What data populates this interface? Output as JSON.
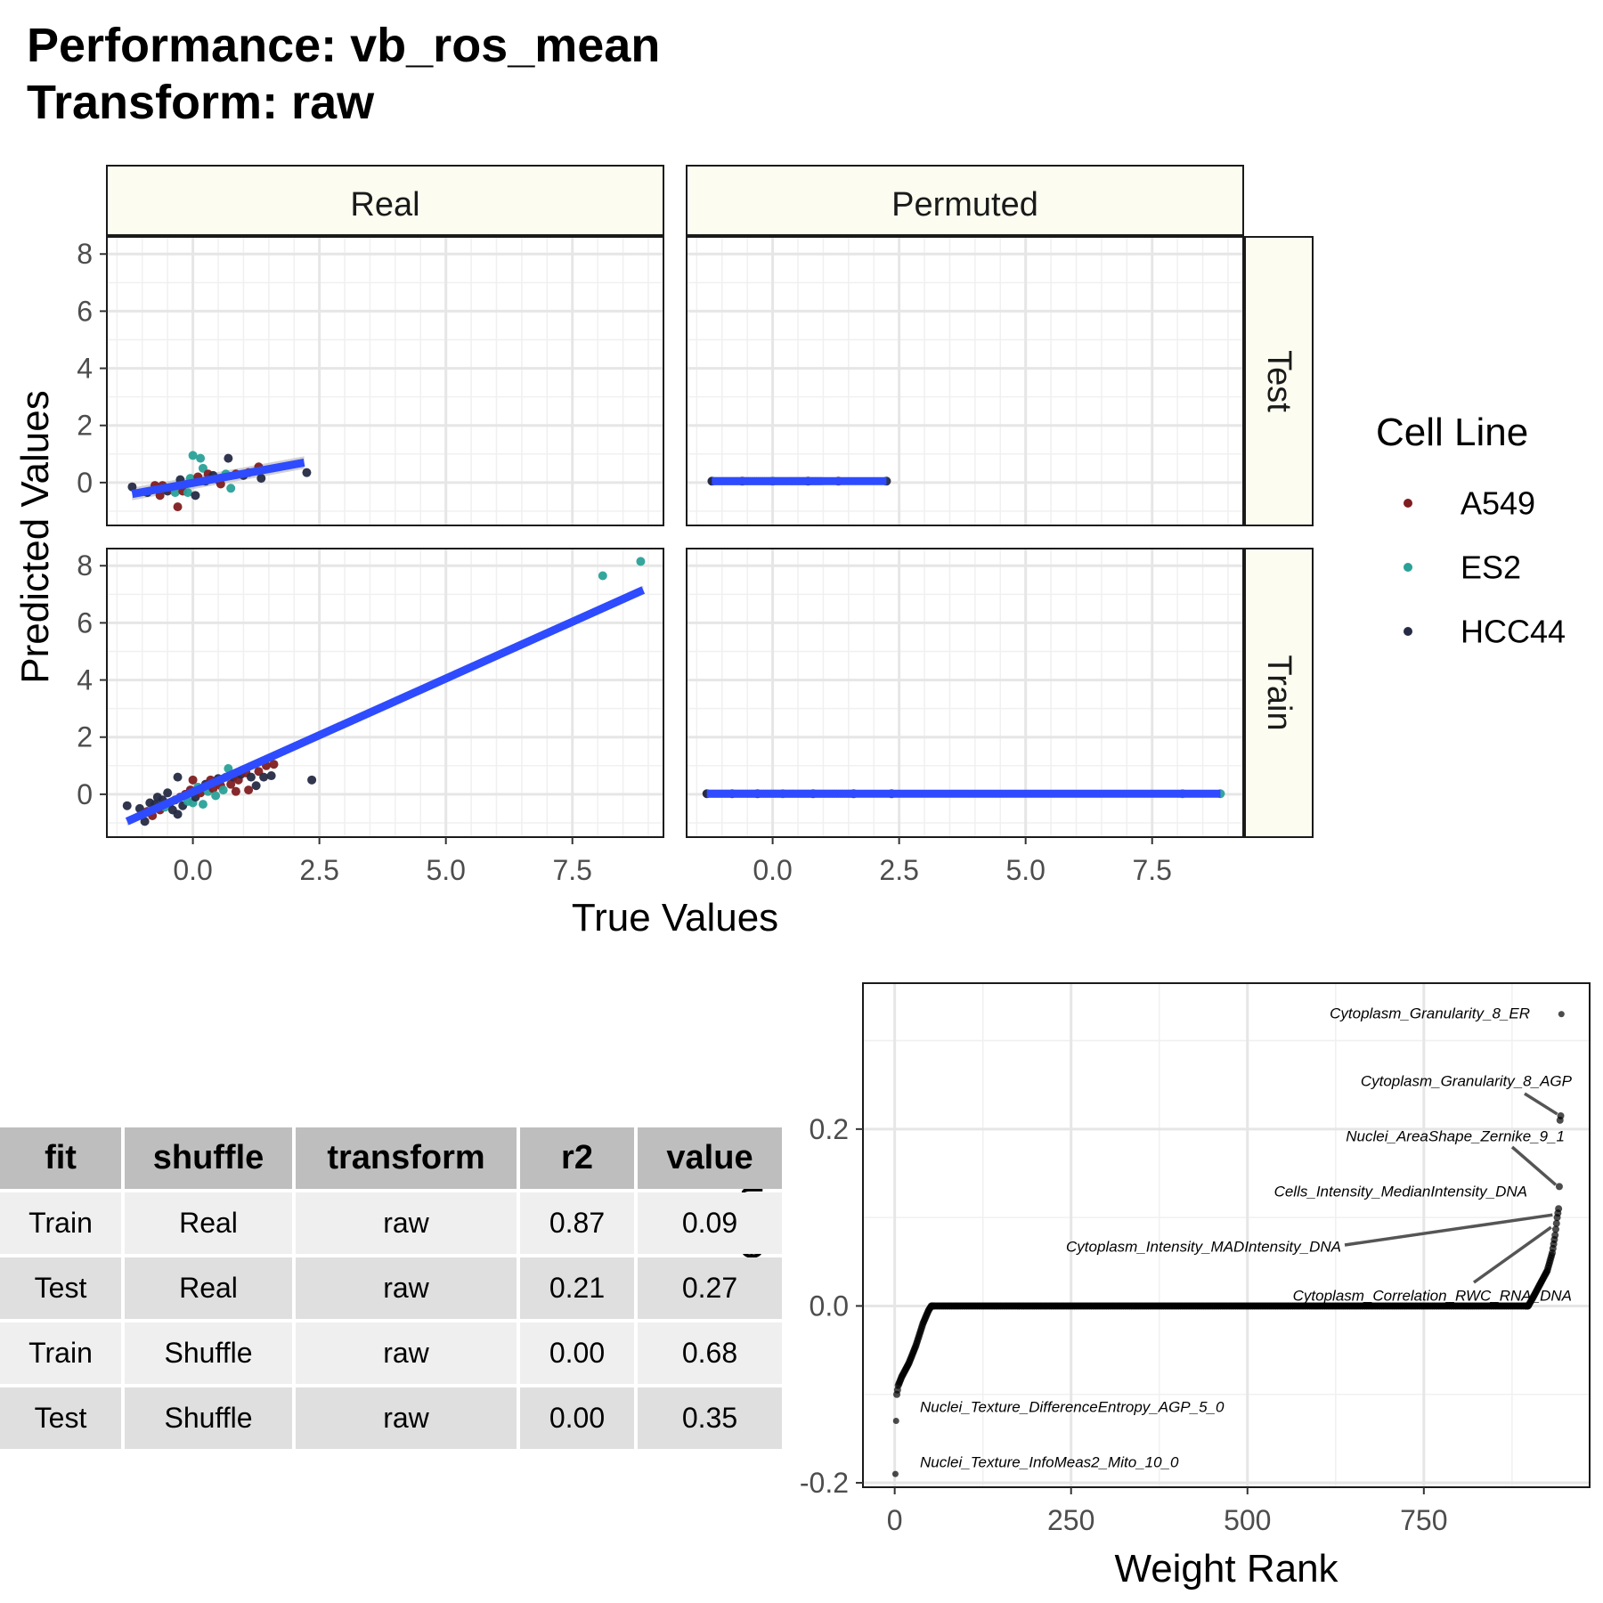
{
  "title": {
    "line1": "Performance: vb_ros_mean",
    "line2": "Transform: raw"
  },
  "colors": {
    "A549": "#7f1d20",
    "ES2": "#2aa198",
    "HCC44": "#262b45",
    "fit_line": "#2e4bff",
    "confidence_band": "#bfbfbf",
    "strip_fill": "#fcfdf0",
    "grid": "#e6e6e6"
  },
  "chart_data": [
    {
      "type": "scatter",
      "facets": {
        "columns": [
          "Real",
          "Permuted"
        ],
        "rows": [
          "Test",
          "Train"
        ]
      },
      "xlabel": "True Values",
      "ylabel": "Predicted Values",
      "xlim": [
        -1.7,
        9.3
      ],
      "ylim": {
        "Test": [
          -1.5,
          8.6
        ],
        "Train": [
          -1.5,
          8.6
        ]
      },
      "xticks": [
        0,
        2.5,
        5,
        7.5
      ],
      "xtick_labels": [
        "0.0",
        "2.5",
        "5.0",
        "7.5"
      ],
      "yticks": [
        0,
        2,
        4,
        6,
        8
      ],
      "ytick_labels": [
        "0",
        "2",
        "4",
        "6",
        "8"
      ],
      "grid": true,
      "legend": {
        "title": "Cell Line",
        "position": "right",
        "entries": [
          "A549",
          "ES2",
          "HCC44"
        ]
      },
      "panels": [
        {
          "column": "Real",
          "row": "Test",
          "fit": {
            "x": [
              -1.2,
              2.2
            ],
            "y": [
              -0.4,
              0.7
            ]
          },
          "points": [
            {
              "x": -1.2,
              "y": -0.15,
              "group": "HCC44"
            },
            {
              "x": -0.9,
              "y": -0.35,
              "group": "HCC44"
            },
            {
              "x": -0.75,
              "y": -0.1,
              "group": "A549"
            },
            {
              "x": -0.65,
              "y": -0.45,
              "group": "A549"
            },
            {
              "x": -0.6,
              "y": -0.1,
              "group": "A549"
            },
            {
              "x": -0.5,
              "y": -0.3,
              "group": "HCC44"
            },
            {
              "x": -0.45,
              "y": -0.2,
              "group": "A549"
            },
            {
              "x": -0.35,
              "y": -0.35,
              "group": "ES2"
            },
            {
              "x": -0.3,
              "y": -0.85,
              "group": "A549"
            },
            {
              "x": -0.25,
              "y": 0.1,
              "group": "HCC44"
            },
            {
              "x": -0.2,
              "y": -0.3,
              "group": "A549"
            },
            {
              "x": -0.1,
              "y": -0.35,
              "group": "ES2"
            },
            {
              "x": -0.05,
              "y": 0.15,
              "group": "ES2"
            },
            {
              "x": 0.0,
              "y": 0.95,
              "group": "ES2"
            },
            {
              "x": 0.05,
              "y": -0.45,
              "group": "HCC44"
            },
            {
              "x": 0.1,
              "y": 0.2,
              "group": "A549"
            },
            {
              "x": 0.15,
              "y": 0.85,
              "group": "ES2"
            },
            {
              "x": 0.2,
              "y": 0.5,
              "group": "ES2"
            },
            {
              "x": 0.25,
              "y": 0.05,
              "group": "HCC44"
            },
            {
              "x": 0.3,
              "y": 0.3,
              "group": "A549"
            },
            {
              "x": 0.4,
              "y": 0.25,
              "group": "HCC44"
            },
            {
              "x": 0.5,
              "y": 0.1,
              "group": "A549"
            },
            {
              "x": 0.55,
              "y": -0.05,
              "group": "A549"
            },
            {
              "x": 0.65,
              "y": 0.3,
              "group": "ES2"
            },
            {
              "x": 0.7,
              "y": 0.85,
              "group": "HCC44"
            },
            {
              "x": 0.75,
              "y": -0.2,
              "group": "ES2"
            },
            {
              "x": 0.85,
              "y": 0.3,
              "group": "A549"
            },
            {
              "x": 1.0,
              "y": 0.25,
              "group": "HCC44"
            },
            {
              "x": 1.1,
              "y": 0.35,
              "group": "A549"
            },
            {
              "x": 1.3,
              "y": 0.55,
              "group": "A549"
            },
            {
              "x": 1.35,
              "y": 0.15,
              "group": "HCC44"
            },
            {
              "x": 2.25,
              "y": 0.35,
              "group": "HCC44"
            }
          ]
        },
        {
          "column": "Permuted",
          "row": "Test",
          "fit": {
            "x": [
              -1.2,
              2.25
            ],
            "y": [
              0.05,
              0.05
            ]
          },
          "points": [
            {
              "x": -1.2,
              "y": 0.05,
              "group": "HCC44"
            },
            {
              "x": -0.6,
              "y": 0.05,
              "group": "A549"
            },
            {
              "x": 0.0,
              "y": 0.05,
              "group": "ES2"
            },
            {
              "x": 0.7,
              "y": 0.05,
              "group": "HCC44"
            },
            {
              "x": 1.3,
              "y": 0.05,
              "group": "A549"
            },
            {
              "x": 2.25,
              "y": 0.05,
              "group": "HCC44"
            }
          ]
        },
        {
          "column": "Real",
          "row": "Train",
          "fit": {
            "x": [
              -1.3,
              8.9
            ],
            "y": [
              -0.95,
              7.15
            ]
          },
          "points": [
            {
              "x": -1.3,
              "y": -0.4,
              "group": "HCC44"
            },
            {
              "x": -1.05,
              "y": -0.5,
              "group": "HCC44"
            },
            {
              "x": -0.95,
              "y": -0.95,
              "group": "HCC44"
            },
            {
              "x": -0.9,
              "y": -0.6,
              "group": "A549"
            },
            {
              "x": -0.85,
              "y": -0.3,
              "group": "HCC44"
            },
            {
              "x": -0.8,
              "y": -0.75,
              "group": "A549"
            },
            {
              "x": -0.75,
              "y": -0.35,
              "group": "HCC44"
            },
            {
              "x": -0.7,
              "y": -0.1,
              "group": "HCC44"
            },
            {
              "x": -0.65,
              "y": -0.55,
              "group": "A549"
            },
            {
              "x": -0.6,
              "y": -0.2,
              "group": "HCC44"
            },
            {
              "x": -0.55,
              "y": -0.45,
              "group": "ES2"
            },
            {
              "x": -0.5,
              "y": 0.05,
              "group": "HCC44"
            },
            {
              "x": -0.45,
              "y": -0.3,
              "group": "A549"
            },
            {
              "x": -0.4,
              "y": -0.55,
              "group": "HCC44"
            },
            {
              "x": -0.35,
              "y": -0.2,
              "group": "A549"
            },
            {
              "x": -0.3,
              "y": -0.7,
              "group": "HCC44"
            },
            {
              "x": -0.3,
              "y": 0.6,
              "group": "HCC44"
            },
            {
              "x": -0.25,
              "y": -0.1,
              "group": "A549"
            },
            {
              "x": -0.2,
              "y": -0.4,
              "group": "HCC44"
            },
            {
              "x": -0.15,
              "y": 0.0,
              "group": "A549"
            },
            {
              "x": -0.1,
              "y": -0.25,
              "group": "ES2"
            },
            {
              "x": -0.05,
              "y": 0.15,
              "group": "A549"
            },
            {
              "x": 0.0,
              "y": -0.3,
              "group": "ES2"
            },
            {
              "x": 0.0,
              "y": 0.5,
              "group": "A549"
            },
            {
              "x": 0.05,
              "y": -0.1,
              "group": "HCC44"
            },
            {
              "x": 0.1,
              "y": 0.25,
              "group": "ES2"
            },
            {
              "x": 0.15,
              "y": 0.05,
              "group": "A549"
            },
            {
              "x": 0.2,
              "y": -0.35,
              "group": "ES2"
            },
            {
              "x": 0.25,
              "y": 0.35,
              "group": "HCC44"
            },
            {
              "x": 0.3,
              "y": 0.1,
              "group": "ES2"
            },
            {
              "x": 0.35,
              "y": 0.5,
              "group": "A549"
            },
            {
              "x": 0.4,
              "y": 0.2,
              "group": "A549"
            },
            {
              "x": 0.45,
              "y": -0.05,
              "group": "ES2"
            },
            {
              "x": 0.5,
              "y": 0.55,
              "group": "HCC44"
            },
            {
              "x": 0.55,
              "y": 0.3,
              "group": "A549"
            },
            {
              "x": 0.6,
              "y": 0.15,
              "group": "ES2"
            },
            {
              "x": 0.65,
              "y": 0.6,
              "group": "ES2"
            },
            {
              "x": 0.7,
              "y": 0.9,
              "group": "ES2"
            },
            {
              "x": 0.75,
              "y": 0.35,
              "group": "A549"
            },
            {
              "x": 0.8,
              "y": 0.6,
              "group": "HCC44"
            },
            {
              "x": 0.85,
              "y": 0.1,
              "group": "A549"
            },
            {
              "x": 0.9,
              "y": 0.5,
              "group": "A549"
            },
            {
              "x": 0.95,
              "y": 0.7,
              "group": "HCC44"
            },
            {
              "x": 1.05,
              "y": 0.75,
              "group": "A549"
            },
            {
              "x": 1.1,
              "y": 0.15,
              "group": "A549"
            },
            {
              "x": 1.15,
              "y": 0.6,
              "group": "HCC44"
            },
            {
              "x": 1.25,
              "y": 0.3,
              "group": "HCC44"
            },
            {
              "x": 1.3,
              "y": 0.8,
              "group": "A549"
            },
            {
              "x": 1.4,
              "y": 0.6,
              "group": "HCC44"
            },
            {
              "x": 1.45,
              "y": 1.0,
              "group": "A549"
            },
            {
              "x": 1.55,
              "y": 0.65,
              "group": "HCC44"
            },
            {
              "x": 1.6,
              "y": 1.05,
              "group": "A549"
            },
            {
              "x": 2.35,
              "y": 0.5,
              "group": "HCC44"
            },
            {
              "x": 8.1,
              "y": 7.65,
              "group": "ES2"
            },
            {
              "x": 8.85,
              "y": 8.15,
              "group": "ES2"
            }
          ]
        },
        {
          "column": "Permuted",
          "row": "Train",
          "fit": {
            "x": [
              -1.3,
              8.85
            ],
            "y": [
              0.02,
              0.02
            ]
          },
          "points": [
            {
              "x": -1.3,
              "y": 0.02,
              "group": "HCC44"
            },
            {
              "x": -0.8,
              "y": 0.02,
              "group": "A549"
            },
            {
              "x": -0.3,
              "y": 0.02,
              "group": "HCC44"
            },
            {
              "x": 0.2,
              "y": 0.02,
              "group": "ES2"
            },
            {
              "x": 0.8,
              "y": 0.02,
              "group": "A549"
            },
            {
              "x": 1.6,
              "y": 0.02,
              "group": "HCC44"
            },
            {
              "x": 2.35,
              "y": 0.02,
              "group": "HCC44"
            },
            {
              "x": 8.1,
              "y": 0.02,
              "group": "ES2"
            },
            {
              "x": 8.85,
              "y": 0.02,
              "group": "ES2"
            }
          ]
        }
      ]
    },
    {
      "type": "table",
      "columns": [
        "fit",
        "shuffle",
        "transform",
        "r2",
        "value"
      ],
      "rows": [
        [
          "Train",
          "Real",
          "raw",
          "0.87",
          "0.09"
        ],
        [
          "Test",
          "Real",
          "raw",
          "0.21",
          "0.27"
        ],
        [
          "Train",
          "Shuffle",
          "raw",
          "0.00",
          "0.68"
        ],
        [
          "Test",
          "Shuffle",
          "raw",
          "0.00",
          "0.35"
        ]
      ]
    },
    {
      "type": "scatter",
      "xlabel": "Weight Rank",
      "ylabel": "Weight",
      "xlim": [
        -45,
        985
      ],
      "ylim": [
        -0.205,
        0.365
      ],
      "xticks": [
        0,
        250,
        500,
        750
      ],
      "xtick_labels": [
        "0",
        "250",
        "500",
        "750"
      ],
      "yticks": [
        -0.2,
        0.0,
        0.2
      ],
      "ytick_labels": [
        "-0.2",
        "0.0",
        "0.2"
      ],
      "grid": true,
      "n_points": 945,
      "curve_anchors": [
        [
          1,
          -0.19
        ],
        [
          2,
          -0.13
        ],
        [
          3,
          -0.1
        ],
        [
          5,
          -0.09
        ],
        [
          10,
          -0.08
        ],
        [
          20,
          -0.065
        ],
        [
          30,
          -0.045
        ],
        [
          40,
          -0.02
        ],
        [
          48,
          -0.005
        ],
        [
          52,
          0.0
        ],
        [
          898,
          0.0
        ],
        [
          905,
          0.01
        ],
        [
          915,
          0.025
        ],
        [
          925,
          0.04
        ],
        [
          932,
          0.06
        ],
        [
          936,
          0.08
        ],
        [
          939,
          0.1
        ],
        [
          941,
          0.11
        ],
        [
          942,
          0.135
        ],
        [
          943,
          0.21
        ],
        [
          944,
          0.215
        ],
        [
          945,
          0.33
        ]
      ],
      "annotations": [
        {
          "label": "Cytoplasm_Granularity_8_ER",
          "point": [
            945,
            0.33
          ]
        },
        {
          "label": "Cytoplasm_Granularity_8_AGP",
          "point": [
            944,
            0.215
          ]
        },
        {
          "label": "Nuclei_AreaShape_Zernike_9_1",
          "point": [
            942,
            0.135
          ]
        },
        {
          "label": "Cells_Intensity_MedianIntensity_DNA",
          "point": [
            941,
            0.11
          ]
        },
        {
          "label": "Cytoplasm_Intensity_MADIntensity_DNA",
          "point": [
            940,
            0.105
          ]
        },
        {
          "label": "Cytoplasm_Correlation_RWC_RNA_DNA",
          "point": [
            938,
            0.095
          ]
        },
        {
          "label": "Nuclei_Texture_DifferenceEntropy_AGP_5_0",
          "point": [
            2,
            -0.13
          ]
        },
        {
          "label": "Nuclei_Texture_InfoMeas2_Mito_10_0",
          "point": [
            1,
            -0.19
          ]
        }
      ]
    }
  ]
}
